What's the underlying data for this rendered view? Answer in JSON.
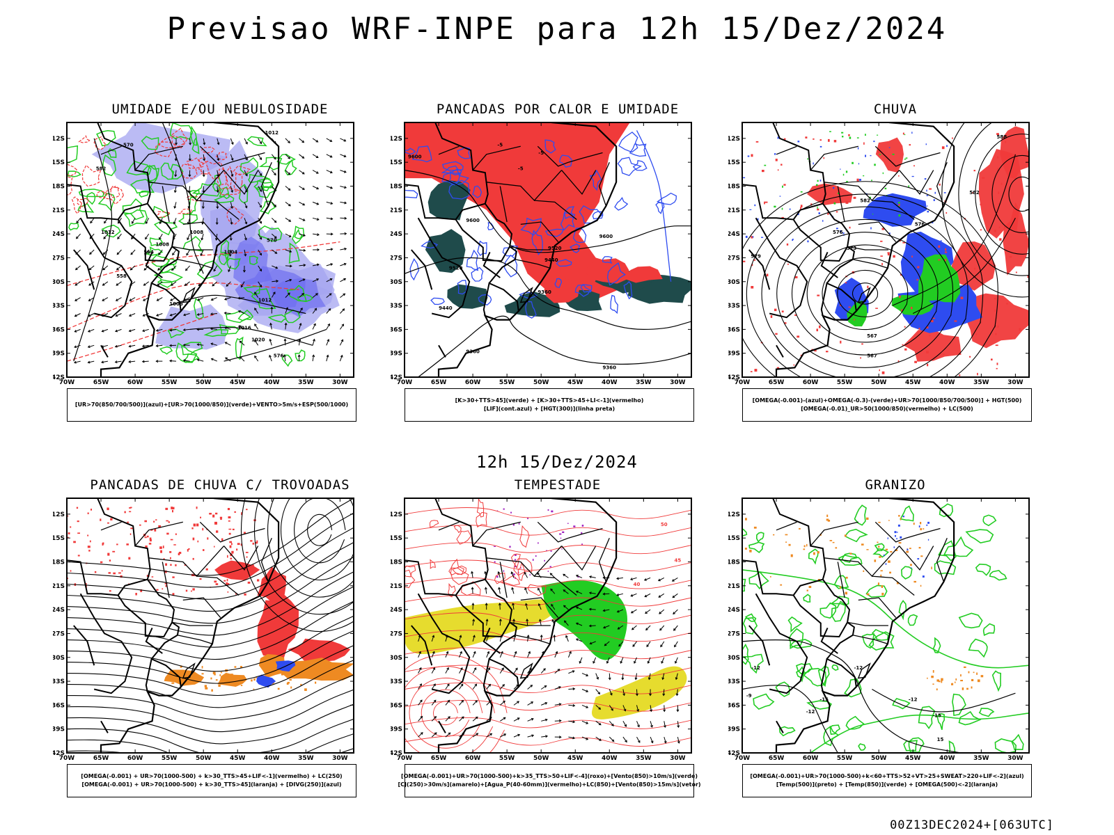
{
  "header": {
    "title": "Previsao WRF-INPE  para 12h 15/Dez/2024",
    "middle_title": "12h 15/Dez/2024",
    "run_stamp": "00Z13DEC2024+[063UTC]"
  },
  "axes": {
    "lat_labels": [
      "12S",
      "15S",
      "18S",
      "21S",
      "24S",
      "27S",
      "30S",
      "33S",
      "36S",
      "39S",
      "42S"
    ],
    "lon_labels": [
      "70W",
      "65W",
      "60W",
      "55W",
      "50W",
      "45W",
      "40W",
      "35W",
      "30W"
    ]
  },
  "colors": {
    "red": "#f03a3a",
    "green": "#22cc22",
    "blue": "#2e4cf0",
    "lavender": "#a4a4f0",
    "darkteal": "#1f4b4b",
    "orange": "#ee8a22",
    "yellow": "#e6dc2e",
    "purple": "#a020c0",
    "black": "#000000"
  },
  "panels": [
    {
      "id": "umidade",
      "title": "UMIDADE E/OU NEBULOSIDADE",
      "legend": [
        "[UR>70(850/700/500)](azul)+[UR>70(1000/850)](verde)+VENTO>5m/s+ESP(500/1000)"
      ],
      "contour_labels": [
        "1012",
        "1012",
        "1008",
        "1008",
        "1004",
        "1008",
        "1012",
        "1016",
        "1020",
        "576",
        "570",
        "564",
        "558",
        "582",
        "570"
      ]
    },
    {
      "id": "pancadas-calor",
      "title": "PANCADAS POR CALOR E UMIDADE",
      "legend": [
        "[K>30+TTS>45](verde) + [K>30+TTS>45+LI<-1](vermelho)",
        "[LIF](cont.azul) + [HGT(300)](linha preta)"
      ],
      "contour_labels": [
        "9600",
        "9600",
        "9520",
        "9440",
        "9520",
        "9440",
        "9360",
        "9360",
        "9360",
        "9600",
        "-5",
        "-5",
        "-5"
      ]
    },
    {
      "id": "chuva",
      "title": "CHUVA",
      "legend": [
        "[OMEGA(-0.001)-(azul)+OMEGA(-0.3)-(verde)+UR>70(1000/850/700/500)] + HGT(500)",
        "[OMEGA(-0.01)_UR>50(1000/850)(vermelho) + LC(500)"
      ],
      "contour_labels": [
        "588",
        "582",
        "579",
        "576",
        "573",
        "567",
        "567",
        "576",
        "582"
      ]
    },
    {
      "id": "pancadas-trovoadas",
      "title": "PANCADAS DE CHUVA C/ TROVOADAS",
      "legend": [
        "[OMEGA(-0.001) + UR>70(1000-500) + k>30_TTS>45+LIF<-1](vermelho) + LC(250)",
        "[OMEGA(-0.001) + UR>70(1000-500) + k>30_TTS>45](laranja) + [DIVG(250)](azul)"
      ],
      "contour_labels": []
    },
    {
      "id": "tempestade",
      "title": "TEMPESTADE",
      "legend": [
        "[OMEGA(-0.001)+UR>70(1000-500)+k>35_TTS>50+LIF<-4](roxo)+[Vento(850)>10m/s](verde)",
        "[CJ(250)>30m/s](amarelo)+[Agua_P(40-60mm)](vermelho)+LC(850)+[Vento(850)>15m/s](vetor)"
      ],
      "contour_labels": [
        "50",
        "45",
        "40"
      ]
    },
    {
      "id": "granizo",
      "title": "GRANIZO",
      "legend": [
        "[OMEGA(-0.001)+UR>70(1000-500)+k<60+TTS>52+VT>25+SWEAT>220+LIF<-2](azul)",
        "[Temp(500)](preto) + [Temp(850)](verde) + [OMEGA(500)<-2](laranja)"
      ],
      "contour_labels": [
        "-12",
        "-12",
        "-15",
        "-12",
        "-15",
        "15",
        "-9",
        "-12"
      ]
    }
  ]
}
